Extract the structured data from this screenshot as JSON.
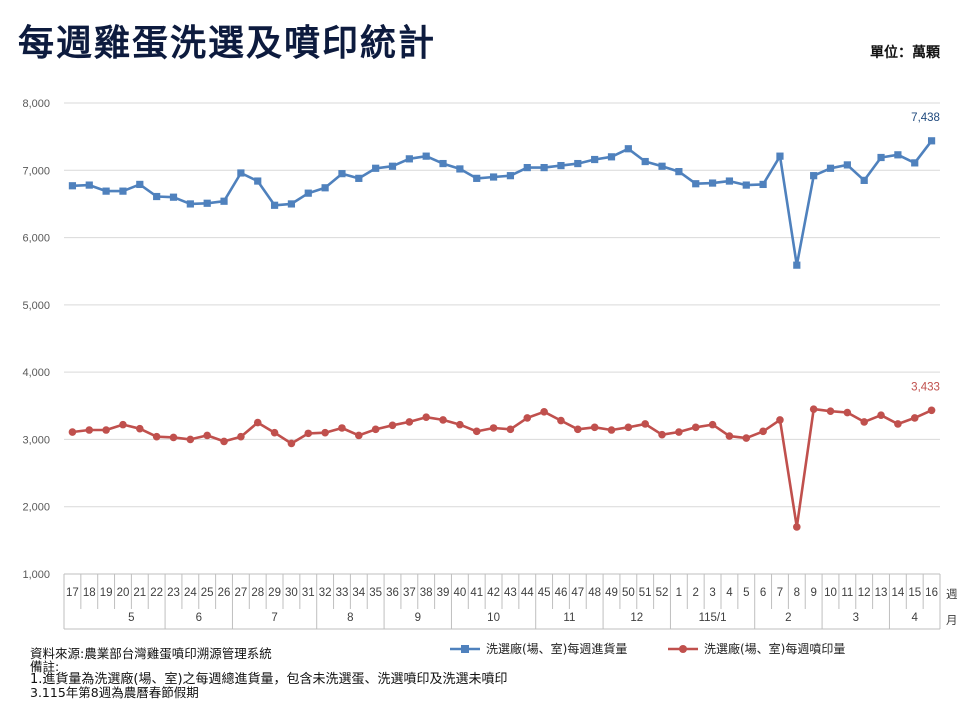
{
  "title": "每週雞蛋洗選及噴印統計",
  "unit_label": "單位：萬顆",
  "chart_data": {
    "type": "line",
    "y_ticks": [
      "1,000",
      "2,000",
      "3,000",
      "4,000",
      "5,000",
      "6,000",
      "7,000",
      "8,000"
    ],
    "ylim": [
      1000,
      8000
    ],
    "grid": true,
    "legend_position": "bottom",
    "x": [
      "17",
      "18",
      "19",
      "20",
      "21",
      "22",
      "23",
      "24",
      "25",
      "26",
      "27",
      "28",
      "29",
      "30",
      "31",
      "32",
      "33",
      "34",
      "35",
      "36",
      "37",
      "38",
      "39",
      "40",
      "41",
      "42",
      "43",
      "44",
      "45",
      "46",
      "47",
      "48",
      "49",
      "50",
      "51",
      "52",
      "1",
      "2",
      "3",
      "4",
      "5",
      "6",
      "7",
      "8",
      "9",
      "10",
      "11",
      "12",
      "13",
      "14",
      "15",
      "16"
    ],
    "groups": [
      {
        "label": "5",
        "start": 3,
        "end": 6
      },
      {
        "label": "6",
        "start": 7,
        "end": 10
      },
      {
        "label": "7",
        "start": 11,
        "end": 15
      },
      {
        "label": "8",
        "start": 16,
        "end": 19
      },
      {
        "label": "9",
        "start": 20,
        "end": 23
      },
      {
        "label": "10",
        "start": 24,
        "end": 28
      },
      {
        "label": "11",
        "start": 29,
        "end": 32
      },
      {
        "label": "12",
        "start": 33,
        "end": 36
      },
      {
        "label": "115/1",
        "start": 37,
        "end": 41
      },
      {
        "label": "2",
        "start": 42,
        "end": 45
      },
      {
        "label": "3",
        "start": 46,
        "end": 49
      },
      {
        "label": "4",
        "start": 50,
        "end": 52
      }
    ],
    "x_unit_label": "週\n月",
    "series": [
      {
        "name": "洗選廠(場、室)每週進貨量",
        "color": "#4f81bd",
        "marker": "square",
        "values": [
          6770,
          6780,
          6690,
          6690,
          6790,
          6610,
          6600,
          6500,
          6510,
          6540,
          6960,
          6840,
          6480,
          6500,
          6660,
          6740,
          6950,
          6880,
          7030,
          7060,
          7170,
          7210,
          7100,
          7020,
          6880,
          6900,
          6920,
          7040,
          7040,
          7070,
          7100,
          7160,
          7200,
          7320,
          7130,
          7060,
          6980,
          6800,
          6810,
          6840,
          6780,
          6790,
          7210,
          5590,
          6920,
          7030,
          7080,
          6850,
          7190,
          7230,
          7110,
          7438
        ],
        "last_label": "7,438"
      },
      {
        "name": "洗選廠(場、室)每週噴印量",
        "color": "#c0504d",
        "marker": "circle",
        "values": [
          3110,
          3140,
          3140,
          3220,
          3160,
          3040,
          3030,
          3000,
          3060,
          2970,
          3040,
          3250,
          3100,
          2940,
          3090,
          3100,
          3170,
          3060,
          3150,
          3210,
          3260,
          3330,
          3290,
          3220,
          3120,
          3170,
          3150,
          3320,
          3410,
          3280,
          3150,
          3180,
          3140,
          3180,
          3230,
          3070,
          3110,
          3180,
          3220,
          3050,
          3020,
          3120,
          3290,
          1700,
          3450,
          3420,
          3400,
          3260,
          3360,
          3230,
          3320,
          3433
        ],
        "last_label": "3,433"
      }
    ]
  },
  "notes": {
    "source": "資料來源:農業部台灣雞蛋噴印溯源管理系統",
    "remark_title": "備註:",
    "note1": "1.進貨量為洗選廠(場、室)之每週總進貨量，包含未洗選蛋、洗選噴印及洗選未噴印",
    "note3": "3.115年第8週為農曆春節假期"
  }
}
